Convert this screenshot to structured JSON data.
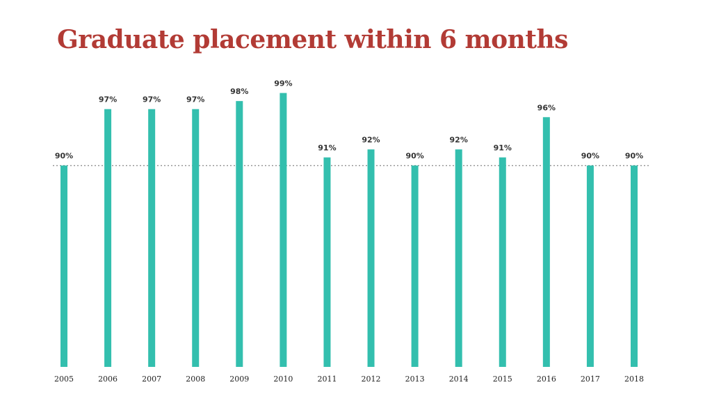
{
  "title": "Graduate placement within 6 months",
  "colors": {
    "title": "#b23b35",
    "bar": "#33bfae",
    "reference_line": "#9a9a9a",
    "label": "#333333"
  },
  "chart_data": {
    "type": "bar",
    "title": "Graduate placement within 6 months",
    "xlabel": "",
    "ylabel": "",
    "categories": [
      "2005",
      "2006",
      "2007",
      "2008",
      "2009",
      "2010",
      "2011",
      "2012",
      "2013",
      "2014",
      "2015",
      "2016",
      "2017",
      "2018"
    ],
    "values": [
      90,
      97,
      97,
      97,
      98,
      99,
      91,
      92,
      90,
      92,
      91,
      96,
      90,
      90
    ],
    "data_labels": [
      "90%",
      "97%",
      "97%",
      "97%",
      "98%",
      "99%",
      "91%",
      "92%",
      "90%",
      "92%",
      "91%",
      "96%",
      "90%",
      "90%"
    ],
    "reference_line": 90,
    "ylim": [
      65,
      100
    ],
    "grid": false,
    "legend": "none"
  }
}
